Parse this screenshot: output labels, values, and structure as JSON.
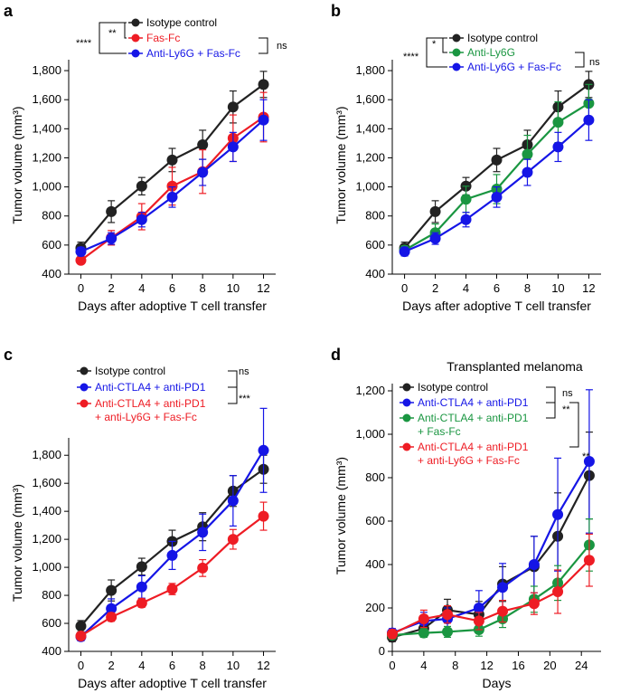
{
  "colors": {
    "black": "#222222",
    "red": "#ee1c24",
    "blue": "#1515e6",
    "green": "#1a9641"
  },
  "chart_data": [
    {
      "panel": "a",
      "type": "line",
      "title": "",
      "xlabel": "Days after adoptive T cell transfer",
      "ylabel": "Tumor volume (mm³)",
      "xlim": [
        -0.8,
        12.8
      ],
      "ylim": [
        400,
        1900
      ],
      "xticks": [
        0,
        2,
        4,
        6,
        8,
        10,
        12
      ],
      "xtick_labels": [
        "0",
        "2",
        "4",
        "6",
        "8",
        "10",
        "12"
      ],
      "yticks": [
        400,
        600,
        800,
        1000,
        1200,
        1400,
        1600,
        1800
      ],
      "ytick_labels": [
        "400",
        "600",
        "800",
        "1,000",
        "1,200",
        "1,400",
        "1,600",
        "1,800"
      ],
      "x": [
        0,
        2,
        4,
        6,
        8,
        10,
        12
      ],
      "series": [
        {
          "name": "Isotype control",
          "color": "#222222",
          "values": [
            580,
            830,
            1005,
            1185,
            1290,
            1550,
            1705
          ],
          "err": [
            40,
            75,
            60,
            80,
            100,
            110,
            90
          ]
        },
        {
          "name": "Fas-Fc",
          "color": "#ee1c24",
          "values": [
            495,
            650,
            795,
            1005,
            1105,
            1335,
            1480
          ],
          "err": [
            25,
            50,
            90,
            130,
            150,
            160,
            170
          ]
        },
        {
          "name": "Anti-Ly6G + Fas-Fc",
          "color": "#1515e6",
          "values": [
            555,
            645,
            775,
            930,
            1100,
            1275,
            1460
          ],
          "err": [
            30,
            40,
            50,
            70,
            90,
            100,
            140
          ]
        }
      ],
      "significance": [
        {
          "label": "****",
          "between": "Isotype control vs Anti-Ly6G + Fas-Fc"
        },
        {
          "label": "**",
          "between": "Isotype control vs Fas-Fc"
        },
        {
          "label": "ns",
          "between": "Fas-Fc vs Anti-Ly6G + Fas-Fc"
        }
      ]
    },
    {
      "panel": "b",
      "type": "line",
      "title": "",
      "xlabel": "Days after adoptive T cell transfer",
      "ylabel": "Tumor volume (mm³)",
      "xlim": [
        -0.8,
        12.8
      ],
      "ylim": [
        400,
        1900
      ],
      "xticks": [
        0,
        2,
        4,
        6,
        8,
        10,
        12
      ],
      "xtick_labels": [
        "0",
        "2",
        "4",
        "6",
        "8",
        "10",
        "12"
      ],
      "yticks": [
        400,
        600,
        800,
        1000,
        1200,
        1400,
        1600,
        1800
      ],
      "ytick_labels": [
        "400",
        "600",
        "800",
        "1,000",
        "1,200",
        "1,400",
        "1,600",
        "1,800"
      ],
      "x": [
        0,
        2,
        4,
        6,
        8,
        10,
        12
      ],
      "series": [
        {
          "name": "Isotype control",
          "color": "#222222",
          "values": [
            580,
            830,
            1005,
            1185,
            1290,
            1550,
            1705
          ],
          "err": [
            40,
            75,
            60,
            80,
            100,
            110,
            90
          ]
        },
        {
          "name": "Anti-Ly6G",
          "color": "#1a9641",
          "values": [
            565,
            685,
            915,
            985,
            1225,
            1445,
            1575
          ],
          "err": [
            30,
            60,
            90,
            100,
            130,
            140,
            130
          ]
        },
        {
          "name": "Anti-Ly6G + Fas-Fc",
          "color": "#1515e6",
          "values": [
            555,
            645,
            775,
            930,
            1100,
            1275,
            1460
          ],
          "err": [
            30,
            40,
            50,
            70,
            90,
            100,
            140
          ]
        }
      ],
      "significance": [
        {
          "label": "****",
          "between": "Isotype control vs Anti-Ly6G + Fas-Fc"
        },
        {
          "label": "*",
          "between": "Isotype control vs Anti-Ly6G"
        },
        {
          "label": "ns",
          "between": "Anti-Ly6G vs Anti-Ly6G + Fas-Fc"
        }
      ]
    },
    {
      "panel": "c",
      "type": "line",
      "title": "",
      "xlabel": "Days after adoptive T cell transfer",
      "ylabel": "Tumor volume (mm³)",
      "xlim": [
        -0.8,
        12.8
      ],
      "ylim": [
        400,
        1950
      ],
      "xticks": [
        0,
        2,
        4,
        6,
        8,
        10,
        12
      ],
      "xtick_labels": [
        "0",
        "2",
        "4",
        "6",
        "8",
        "10",
        "12"
      ],
      "yticks": [
        400,
        600,
        800,
        1000,
        1200,
        1400,
        1600,
        1800
      ],
      "ytick_labels": [
        "400",
        "600",
        "800",
        "1,000",
        "1,200",
        "1,400",
        "1,600",
        "1,800"
      ],
      "x": [
        0,
        2,
        4,
        6,
        8,
        10,
        12
      ],
      "series": [
        {
          "name": "Isotype control",
          "color": "#222222",
          "values": [
            580,
            835,
            1005,
            1185,
            1290,
            1545,
            1700
          ],
          "err": [
            40,
            75,
            60,
            80,
            100,
            110,
            100
          ]
        },
        {
          "name": "Anti-CTLA4 + anti-PD1",
          "color": "#1515e6",
          "values": [
            505,
            705,
            860,
            1085,
            1250,
            1475,
            1835
          ],
          "err": [
            30,
            70,
            80,
            100,
            130,
            180,
            300
          ]
        },
        {
          "name": "Anti-CTLA4 + anti-PD1 + anti-Ly6G + Fas-Fc",
          "color": "#ee1c24",
          "values": [
            510,
            645,
            745,
            845,
            995,
            1200,
            1365
          ],
          "err": [
            25,
            30,
            30,
            40,
            60,
            70,
            100
          ]
        }
      ],
      "significance": [
        {
          "label": "ns",
          "between": "Isotype control vs Anti-CTLA4 + anti-PD1"
        },
        {
          "label": "***",
          "between": "Anti-CTLA4 + anti-PD1 vs Anti-CTLA4 + anti-PD1 + anti-Ly6G + Fas-Fc"
        }
      ]
    },
    {
      "panel": "d",
      "type": "line",
      "title": "Transplanted melanoma",
      "xlabel": "Days",
      "ylabel": "Tumor volume (mm³)",
      "xlim": [
        0,
        26.5
      ],
      "ylim": [
        0,
        1250
      ],
      "xticks": [
        0,
        4,
        8,
        12,
        16,
        20,
        24
      ],
      "xtick_labels": [
        "0",
        "4",
        "8",
        "12",
        "16",
        "20",
        "24"
      ],
      "yticks": [
        0,
        200,
        400,
        600,
        800,
        1000,
        1200
      ],
      "ytick_labels": [
        "0",
        "200",
        "400",
        "600",
        "800",
        "1,000",
        "1,200"
      ],
      "x": [
        0,
        4,
        7,
        11,
        14,
        18,
        21,
        25
      ],
      "series": [
        {
          "name": "Isotype control",
          "color": "#222222",
          "values": [
            65,
            105,
            190,
            170,
            310,
            390,
            530,
            810
          ],
          "err": [
            20,
            40,
            50,
            60,
            80,
            140,
            200,
            200
          ]
        },
        {
          "name": "Anti-CTLA4 + anti-PD1",
          "color": "#1515e6",
          "values": [
            85,
            140,
            150,
            200,
            295,
            400,
            630,
            875
          ],
          "err": [
            20,
            40,
            50,
            80,
            110,
            130,
            260,
            330
          ]
        },
        {
          "name": "Anti-CTLA4 + anti-PD1 + Fas-Fc",
          "color": "#1a9641",
          "values": [
            75,
            85,
            90,
            100,
            150,
            240,
            315,
            490
          ],
          "err": [
            15,
            20,
            25,
            30,
            40,
            60,
            80,
            120
          ]
        },
        {
          "name": "Anti-CTLA4 + anti-PD1 + anti-Ly6G + Fas-Fc",
          "color": "#ee1c24",
          "values": [
            80,
            150,
            170,
            140,
            185,
            220,
            275,
            420
          ],
          "err": [
            20,
            40,
            40,
            40,
            50,
            50,
            100,
            120
          ]
        }
      ],
      "significance": [
        {
          "label": "ns",
          "between": "Isotype control vs Anti-CTLA4 + anti-PD1"
        },
        {
          "label": "**",
          "between": "Anti-CTLA4 + anti-PD1 vs Anti-CTLA4 + anti-PD1 + Fas-Fc"
        },
        {
          "label": "**",
          "between": "Anti-CTLA4 + anti-PD1 vs Anti-CTLA4 + anti-PD1 + anti-Ly6G + Fas-Fc"
        }
      ]
    }
  ]
}
